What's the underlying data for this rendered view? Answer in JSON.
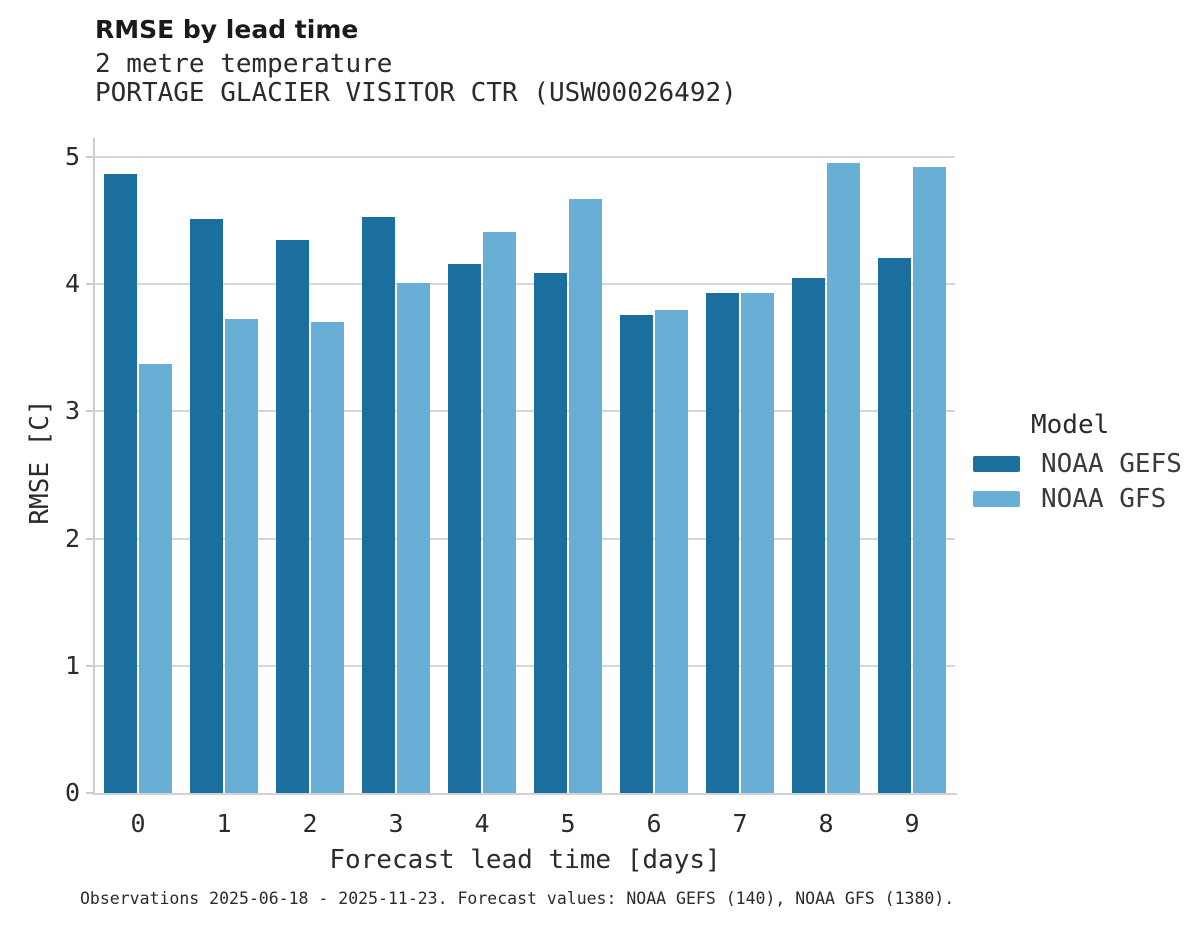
{
  "header": {
    "title": "RMSE by lead time",
    "subtitle_line1": "2 metre temperature",
    "subtitle_line2": "PORTAGE GLACIER VISITOR CTR (USW00026492)"
  },
  "chart_data": {
    "type": "bar",
    "title": "RMSE by lead time",
    "subtitle": [
      "2 metre temperature",
      "PORTAGE GLACIER VISITOR CTR (USW00026492)"
    ],
    "categories": [
      "0",
      "1",
      "2",
      "3",
      "4",
      "5",
      "6",
      "7",
      "8",
      "9"
    ],
    "series": [
      {
        "name": "NOAA GEFS",
        "color": "#1A6F9E",
        "values": [
          4.87,
          4.51,
          4.35,
          4.53,
          4.16,
          4.09,
          3.76,
          3.93,
          4.05,
          4.21
        ]
      },
      {
        "name": "NOAA GFS",
        "color": "#69AED5",
        "values": [
          3.37,
          3.73,
          3.7,
          4.01,
          4.41,
          4.67,
          3.8,
          3.93,
          4.95,
          4.92
        ]
      }
    ],
    "xlabel": "Forecast lead time [days]",
    "ylabel": "RMSE [C]",
    "yticks": [
      0,
      1,
      2,
      3,
      4,
      5
    ],
    "ylim": [
      0,
      5.15
    ],
    "grid": true,
    "legend_title": "Model",
    "legend_position": "right",
    "colors": {
      "grid": "#d7d7d7",
      "spine": "#cccfd1",
      "background": "#ffffff"
    }
  },
  "footnote": "Observations 2025-06-18 - 2025-11-23. Forecast values: NOAA GEFS (140), NOAA GFS (1380)."
}
